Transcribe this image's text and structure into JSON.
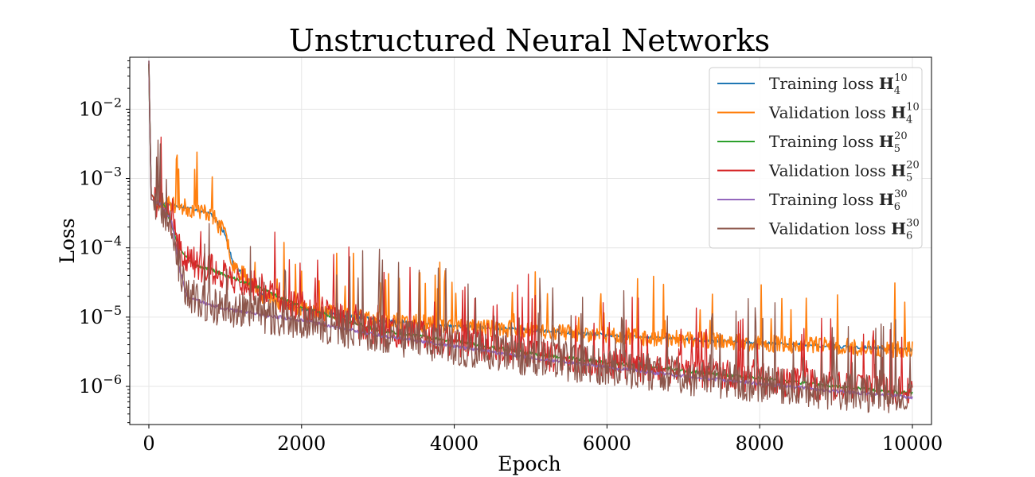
{
  "chart_data": {
    "type": "line",
    "title": "Unstructured Neural Networks",
    "xlabel": "Epoch",
    "ylabel": "Loss",
    "xlim": [
      -250,
      10250
    ],
    "ylim_log10": [
      -6.55,
      -1.25
    ],
    "yscale": "log",
    "grid": true,
    "legend_position": "top-right",
    "x_ticks": [
      0,
      2000,
      4000,
      6000,
      8000,
      10000
    ],
    "y_ticks": [
      {
        "exp": -2,
        "base": "10",
        "exponent_label": "−2"
      },
      {
        "exp": -3,
        "base": "10",
        "exponent_label": "−3"
      },
      {
        "exp": -4,
        "base": "10",
        "exponent_label": "−4"
      },
      {
        "exp": -5,
        "base": "10",
        "exponent_label": "−5"
      },
      {
        "exp": -6,
        "base": "10",
        "exponent_label": "−6"
      }
    ],
    "series": [
      {
        "name": "Training loss",
        "sym": "H",
        "sub": "4",
        "sup": "10",
        "color": "#1f77b4",
        "points": [
          [
            0,
            0.045
          ],
          [
            30,
            0.0006
          ],
          [
            100,
            0.00046
          ],
          [
            200,
            0.00044
          ],
          [
            400,
            0.0004
          ],
          [
            600,
            0.00035
          ],
          [
            800,
            0.00032
          ],
          [
            1000,
            0.00016
          ],
          [
            1100,
            6e-05
          ],
          [
            1500,
            2e-05
          ],
          [
            2000,
            1.3e-05
          ],
          [
            3000,
            9e-06
          ],
          [
            4000,
            7.5e-06
          ],
          [
            5000,
            6.5e-06
          ],
          [
            6000,
            5.5e-06
          ],
          [
            7000,
            4.8e-06
          ],
          [
            8000,
            4.2e-06
          ],
          [
            9000,
            3.8e-06
          ],
          [
            10000,
            3.4e-06
          ]
        ]
      },
      {
        "name": "Validation loss",
        "sym": "H",
        "sub": "4",
        "sup": "10",
        "color": "#ff7f0e",
        "points": [
          [
            0,
            0.045
          ],
          [
            30,
            0.0006
          ],
          [
            100,
            0.00046
          ],
          [
            200,
            0.00044
          ],
          [
            400,
            0.0004
          ],
          [
            600,
            0.00035
          ],
          [
            800,
            0.00032
          ],
          [
            1000,
            0.00016
          ],
          [
            1100,
            6e-05
          ],
          [
            1500,
            2e-05
          ],
          [
            2000,
            1.3e-05
          ],
          [
            3000,
            9e-06
          ],
          [
            4000,
            7.5e-06
          ],
          [
            5000,
            6.5e-06
          ],
          [
            6000,
            5.5e-06
          ],
          [
            7000,
            4.8e-06
          ],
          [
            8000,
            4.2e-06
          ],
          [
            9000,
            3.8e-06
          ],
          [
            10000,
            3.4e-06
          ]
        ]
      },
      {
        "name": "Training loss",
        "sym": "H",
        "sub": "5",
        "sup": "20",
        "color": "#2ca02c",
        "points": [
          [
            0,
            0.045
          ],
          [
            30,
            0.0006
          ],
          [
            100,
            0.00046
          ],
          [
            200,
            0.00043
          ],
          [
            400,
            0.0001
          ],
          [
            600,
            5.5e-05
          ],
          [
            800,
            5e-05
          ],
          [
            1000,
            4e-05
          ],
          [
            1500,
            2.5e-05
          ],
          [
            2000,
            1.4e-05
          ],
          [
            3000,
            6.5e-06
          ],
          [
            4000,
            4.5e-06
          ],
          [
            5000,
            3e-06
          ],
          [
            6000,
            2.2e-06
          ],
          [
            7000,
            1.7e-06
          ],
          [
            8000,
            1.3e-06
          ],
          [
            9000,
            1e-06
          ],
          [
            10000,
            8e-07
          ]
        ]
      },
      {
        "name": "Validation loss",
        "sym": "H",
        "sub": "5",
        "sup": "20",
        "color": "#d62728",
        "points": [
          [
            0,
            0.045
          ],
          [
            30,
            0.0006
          ],
          [
            100,
            0.00046
          ],
          [
            200,
            0.00043
          ],
          [
            400,
            0.0001
          ],
          [
            600,
            5.5e-05
          ],
          [
            800,
            5e-05
          ],
          [
            1000,
            4e-05
          ],
          [
            1500,
            2.5e-05
          ],
          [
            2000,
            1.4e-05
          ],
          [
            3000,
            6.5e-06
          ],
          [
            4000,
            4.5e-06
          ],
          [
            5000,
            3e-06
          ],
          [
            6000,
            2.2e-06
          ],
          [
            7000,
            1.7e-06
          ],
          [
            8000,
            1.3e-06
          ],
          [
            9000,
            1e-06
          ],
          [
            10000,
            8e-07
          ]
        ]
      },
      {
        "name": "Training loss",
        "sym": "H",
        "sub": "6",
        "sup": "30",
        "color": "#9467bd",
        "points": [
          [
            0,
            0.05
          ],
          [
            30,
            0.0005
          ],
          [
            150,
            0.00043
          ],
          [
            300,
            0.00025
          ],
          [
            400,
            5e-05
          ],
          [
            500,
            2e-05
          ],
          [
            800,
            1.5e-05
          ],
          [
            1000,
            1.3e-05
          ],
          [
            2000,
            9e-06
          ],
          [
            3000,
            5.5e-06
          ],
          [
            4000,
            3.8e-06
          ],
          [
            5000,
            2.6e-06
          ],
          [
            6000,
            1.9e-06
          ],
          [
            7000,
            1.4e-06
          ],
          [
            8000,
            1.1e-06
          ],
          [
            9000,
            8.5e-07
          ],
          [
            10000,
            7e-07
          ]
        ]
      },
      {
        "name": "Validation loss",
        "sym": "H",
        "sub": "6",
        "sup": "30",
        "color": "#8c564b",
        "points": [
          [
            0,
            0.05
          ],
          [
            30,
            0.0005
          ],
          [
            150,
            0.00043
          ],
          [
            300,
            0.00025
          ],
          [
            400,
            5e-05
          ],
          [
            500,
            2e-05
          ],
          [
            800,
            1.5e-05
          ],
          [
            1000,
            1.3e-05
          ],
          [
            2000,
            9e-06
          ],
          [
            3000,
            5.5e-06
          ],
          [
            4000,
            3.8e-06
          ],
          [
            5000,
            2.6e-06
          ],
          [
            6000,
            1.9e-06
          ],
          [
            7000,
            1.4e-06
          ],
          [
            8000,
            1.1e-06
          ],
          [
            9000,
            8.5e-07
          ],
          [
            10000,
            7e-07
          ]
        ]
      }
    ]
  }
}
